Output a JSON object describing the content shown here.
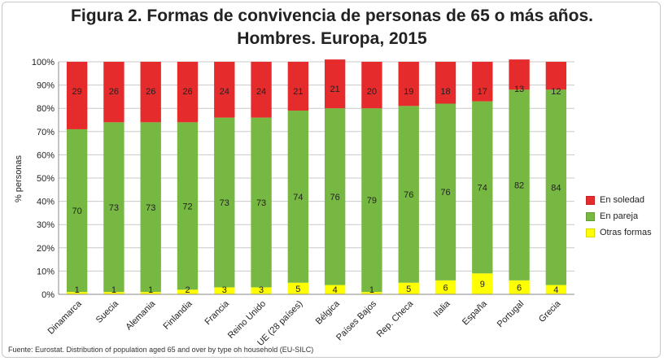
{
  "chart_data": {
    "type": "bar",
    "stacked": true,
    "title_line1": "Figura 2. Formas de convivencia de personas de 65 o más años.",
    "title_line2": "Hombres. Europa, 2015",
    "ylabel": "% personas",
    "xlabel": "",
    "ylim": [
      0,
      100
    ],
    "yticks": [
      "0%",
      "10%",
      "20%",
      "30%",
      "40%",
      "50%",
      "60%",
      "70%",
      "80%",
      "90%",
      "100%"
    ],
    "grid": true,
    "legend_position": "right",
    "categories": [
      "Dinamarca",
      "Suecia",
      "Alemania",
      "Finlandia",
      "Francia",
      "Reino Unido",
      "UE (28 países)",
      "Bélgica",
      "Países Bajos",
      "Rep. Checa",
      "Italia",
      "España",
      "Portugal",
      "Grecia"
    ],
    "series": [
      {
        "name": "Otras formas",
        "color": "#ffff00",
        "values": [
          1,
          1,
          1,
          2,
          3,
          3,
          5,
          4,
          1,
          5,
          6,
          9,
          6,
          4
        ]
      },
      {
        "name": "En pareja",
        "color": "#77b843",
        "values": [
          70,
          73,
          73,
          72,
          73,
          73,
          74,
          76,
          79,
          76,
          76,
          74,
          82,
          84
        ]
      },
      {
        "name": "En soledad",
        "color": "#e52b2b",
        "values": [
          29,
          26,
          26,
          26,
          24,
          24,
          21,
          21,
          20,
          19,
          18,
          17,
          13,
          12
        ]
      }
    ],
    "source": "Fuente: Eurostat. Distribution of population aged 65 and over by type oh household (EU-SILC)"
  }
}
